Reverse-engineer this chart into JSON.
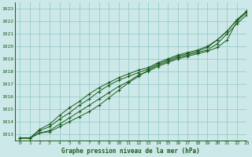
{
  "title": "Graphe pression niveau de la mer (hPa)",
  "bg_color": "#cce8e8",
  "grid_color": "#99cccc",
  "line_color": "#1a5c1a",
  "marker_color": "#1a5c1a",
  "xlim": [
    -0.5,
    23
  ],
  "ylim": [
    1012.5,
    1023.5
  ],
  "yticks": [
    1013,
    1014,
    1015,
    1016,
    1017,
    1018,
    1019,
    1020,
    1021,
    1022,
    1023
  ],
  "xticks": [
    0,
    1,
    2,
    3,
    4,
    5,
    6,
    7,
    8,
    9,
    10,
    11,
    12,
    13,
    14,
    15,
    16,
    17,
    18,
    19,
    20,
    21,
    22,
    23
  ],
  "series": [
    [
      1012.7,
      1012.7,
      1013.1,
      1013.3,
      1013.8,
      1014.3,
      1014.8,
      1015.3,
      1015.8,
      1016.3,
      1016.8,
      1017.2,
      1017.7,
      1018.0,
      1018.4,
      1018.7,
      1019.0,
      1019.2,
      1019.4,
      1019.6,
      1019.9,
      1020.5,
      1022.0,
      1022.7
    ],
    [
      1012.7,
      1012.7,
      1013.1,
      1013.2,
      1013.6,
      1014.0,
      1014.4,
      1014.8,
      1015.3,
      1015.9,
      1016.5,
      1017.1,
      1017.6,
      1018.1,
      1018.5,
      1018.8,
      1019.1,
      1019.3,
      1019.5,
      1019.7,
      1020.2,
      1021.0,
      1021.8,
      1022.5
    ],
    [
      1012.7,
      1012.7,
      1013.3,
      1013.6,
      1014.2,
      1014.7,
      1015.3,
      1015.8,
      1016.4,
      1016.9,
      1017.3,
      1017.6,
      1017.9,
      1018.2,
      1018.6,
      1018.9,
      1019.2,
      1019.4,
      1019.6,
      1019.9,
      1020.5,
      1021.2,
      1022.1,
      1022.8
    ],
    [
      1012.7,
      1012.7,
      1013.4,
      1013.8,
      1014.5,
      1015.1,
      1015.6,
      1016.2,
      1016.7,
      1017.1,
      1017.5,
      1017.8,
      1018.1,
      1018.3,
      1018.7,
      1019.0,
      1019.3,
      1019.5,
      1019.7,
      1020.0,
      1020.5,
      1021.2,
      1022.1,
      1022.8
    ]
  ]
}
